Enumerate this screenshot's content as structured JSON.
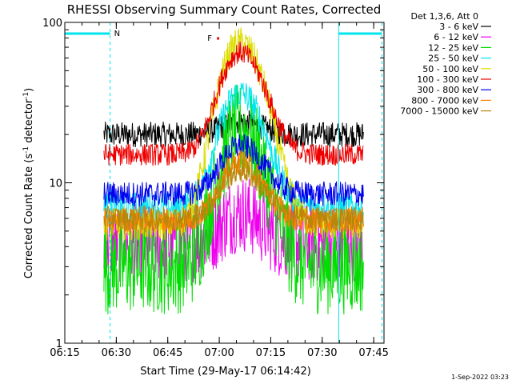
{
  "chart_data": {
    "type": "line",
    "title": "RHESSI Observing Summary Count Rates, Corrected",
    "xlabel": "Start Time (29-May-17 06:14:42)",
    "ylabel_main": "Corrected Count Rate (s",
    "ylabel_sup1": "-1",
    "ylabel_mid": " detector",
    "ylabel_sup2": "-1",
    "ylabel_end": ")",
    "y_scale": "log",
    "ylim": [
      1,
      100
    ],
    "xlim_minutes": [
      6.25,
      7.8
    ],
    "x_ticks": [
      {
        "h": 6.25,
        "label": "06:15"
      },
      {
        "h": 6.5,
        "label": "06:30"
      },
      {
        "h": 6.75,
        "label": "06:45"
      },
      {
        "h": 7.0,
        "label": "07:00"
      },
      {
        "h": 7.25,
        "label": "07:15"
      },
      {
        "h": 7.5,
        "label": "07:30"
      },
      {
        "h": 7.75,
        "label": "07:45"
      }
    ],
    "y_ticks": [
      {
        "v": 1,
        "label": "1"
      },
      {
        "v": 10,
        "label": "10"
      },
      {
        "v": 100,
        "label": "100"
      }
    ],
    "legend_header": "Det 1,3,6, Att 0",
    "legend_placement": "right",
    "flags": [
      {
        "label": "N",
        "color": "#00e5ee",
        "x_start_h": 6.25,
        "x_end_h": 6.47
      },
      {
        "label": "",
        "color": "#00e5ee",
        "x_start_h": 7.58,
        "x_end_h": 7.79
      }
    ],
    "flare_marker": {
      "label": "F",
      "color": "#ee0000",
      "x_start_h": 6.95,
      "x_end_h": 7.0
    },
    "series": [
      {
        "name": "3 - 6 keV",
        "color": "#000000",
        "baseline": 20,
        "peak": 24,
        "noise": 0.08
      },
      {
        "name": "6 - 12 keV",
        "color": "#ee00ee",
        "baseline": 4.2,
        "peak": 6.5,
        "noise": 0.25
      },
      {
        "name": "12 - 25 keV",
        "color": "#00dd00",
        "baseline": 3.0,
        "peak": 21,
        "noise": 0.3
      },
      {
        "name": "25 - 50 keV",
        "color": "#00e5ee",
        "baseline": 7.0,
        "peak": 36,
        "noise": 0.1
      },
      {
        "name": "50 - 100 keV",
        "color": "#dddd00",
        "baseline": 5.5,
        "peak": 75,
        "noise": 0.1
      },
      {
        "name": "100 - 300 keV",
        "color": "#ee0000",
        "baseline": 15,
        "peak": 65,
        "noise": 0.07
      },
      {
        "name": "300 - 800 keV",
        "color": "#0000ee",
        "baseline": 8.5,
        "peak": 17,
        "noise": 0.08
      },
      {
        "name": "800 - 7000 keV",
        "color": "#ff8000",
        "baseline": 5.8,
        "peak": 13.5,
        "noise": 0.08
      },
      {
        "name": "7000 - 15000 keV",
        "color": "#b8860b",
        "baseline": 6.0,
        "peak": 12,
        "noise": 0.08
      }
    ],
    "data_range_h": [
      6.44,
      7.7
    ],
    "peak_time_h": 7.1,
    "dashed_lines_h": [
      6.47,
      7.79
    ],
    "solid_lines_h": [
      6.25,
      7.58
    ],
    "footer_stamp": "1-Sep-2022 03:23"
  }
}
